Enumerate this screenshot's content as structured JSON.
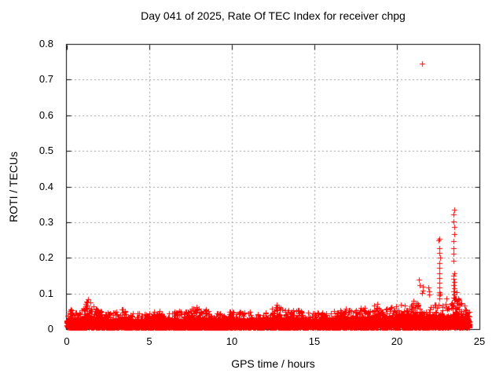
{
  "chart_data": {
    "type": "scatter",
    "title": "Day 041 of 2025, Rate Of TEC Index for receiver chpg",
    "xlabel": "GPS time / hours",
    "ylabel": "ROTI / TECUs",
    "xlim": [
      0,
      25
    ],
    "ylim": [
      0,
      0.8
    ],
    "xticks": [
      0,
      5,
      10,
      15,
      20,
      25
    ],
    "yticks": [
      0,
      0.1,
      0.2,
      0.3,
      0.4,
      0.5,
      0.6,
      0.7,
      0.8
    ],
    "xtick_labels": [
      "0",
      "5",
      "10",
      "15",
      "20",
      "25"
    ],
    "ytick_labels": [
      "0",
      "0.1",
      "0.2",
      "0.3",
      "0.4",
      "0.5",
      "0.6",
      "0.7",
      "0.8"
    ],
    "grid": true,
    "grid_color": "#9e9e9e",
    "border_color": "#000000",
    "marker": "plus",
    "marker_color": "#ff0000",
    "marker_size": 7,
    "seed": 20250041,
    "noise_floor": 0.004,
    "epochs_per_hour": 60,
    "points_per_epoch": 6,
    "data_end_hour": 24.4,
    "band_envelope": {
      "hours": [
        0,
        0.15,
        0.5,
        0.9,
        1.25,
        1.6,
        2.1,
        2.6,
        3.2,
        3.6,
        4.1,
        4.6,
        5.1,
        5.6,
        6.1,
        6.5,
        7.0,
        7.4,
        7.8,
        8.2,
        8.7,
        9.2,
        9.7,
        10.2,
        10.7,
        11.2,
        11.7,
        12.2,
        12.55,
        12.75,
        13.0,
        13.4,
        13.9,
        14.4,
        14.9,
        15.4,
        15.9,
        16.4,
        16.9,
        17.4,
        17.9,
        18.4,
        18.8,
        19.3,
        19.8,
        20.3,
        20.7,
        21.0,
        21.4,
        21.8,
        22.2,
        22.6,
        23.0,
        23.3,
        23.55,
        23.75,
        24.0,
        24.4
      ],
      "max": [
        0.052,
        0.058,
        0.048,
        0.055,
        0.088,
        0.065,
        0.05,
        0.045,
        0.052,
        0.062,
        0.048,
        0.042,
        0.05,
        0.052,
        0.044,
        0.06,
        0.046,
        0.054,
        0.062,
        0.06,
        0.05,
        0.046,
        0.05,
        0.054,
        0.048,
        0.05,
        0.044,
        0.052,
        0.065,
        0.078,
        0.056,
        0.054,
        0.06,
        0.05,
        0.044,
        0.047,
        0.05,
        0.054,
        0.058,
        0.054,
        0.064,
        0.058,
        0.072,
        0.06,
        0.065,
        0.07,
        0.062,
        0.08,
        0.068,
        0.06,
        0.065,
        0.075,
        0.07,
        0.072,
        0.095,
        0.088,
        0.07,
        0.05
      ]
    },
    "spikes": [
      {
        "hour": 22.57,
        "values": [
          0.253,
          0.249,
          0.226,
          0.214,
          0.201,
          0.186,
          0.171,
          0.156,
          0.143,
          0.13,
          0.117,
          0.104,
          0.094,
          0.085
        ]
      },
      {
        "hour": 23.45,
        "values": [
          0.334,
          0.321,
          0.303,
          0.286,
          0.267,
          0.247,
          0.228,
          0.211,
          0.192,
          0.157,
          0.149,
          0.141,
          0.132,
          0.123,
          0.114,
          0.105,
          0.097,
          0.089
        ]
      }
    ],
    "isolated_points": [
      [
        21.33,
        0.138
      ],
      [
        21.38,
        0.124
      ],
      [
        21.5,
        0.102
      ],
      [
        21.55,
        0.12
      ],
      [
        21.58,
        0.109
      ],
      [
        21.9,
        0.116
      ],
      [
        21.93,
        0.105
      ],
      [
        21.96,
        0.097
      ],
      [
        22.62,
        0.1
      ],
      [
        23.0,
        0.085
      ],
      [
        23.6,
        0.103
      ]
    ],
    "outlier": [
      21.5,
      0.745
    ]
  }
}
